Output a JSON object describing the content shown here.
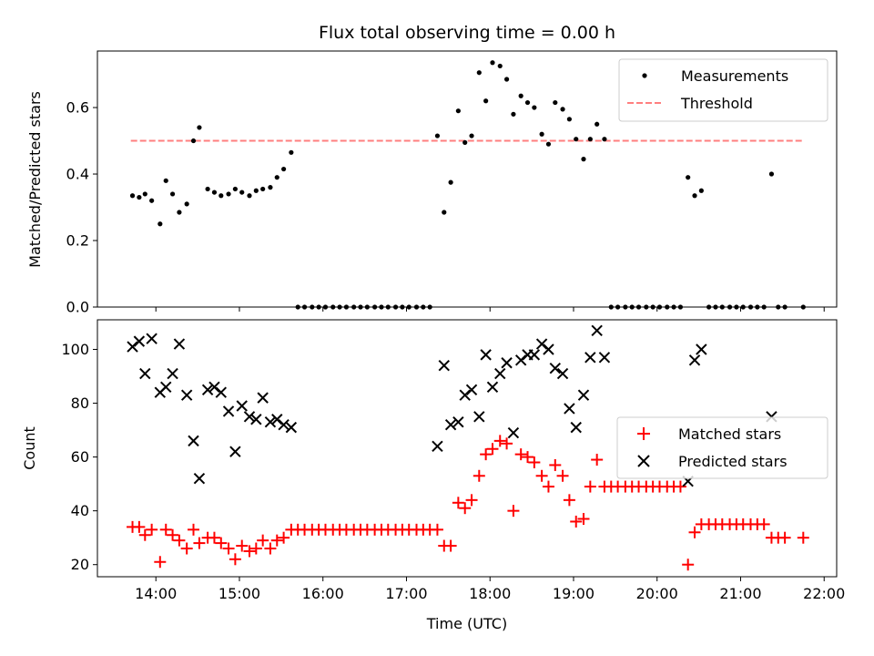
{
  "chart_data": {
    "title": "Flux total observing time = 0.00 h",
    "xlabel": "Time (UTC)",
    "xlim_hours": [
      13.3,
      22.15
    ],
    "x_ticks": [
      {
        "value": 14,
        "label": "14:00"
      },
      {
        "value": 15,
        "label": "15:00"
      },
      {
        "value": 16,
        "label": "16:00"
      },
      {
        "value": 17,
        "label": "17:00"
      },
      {
        "value": 18,
        "label": "18:00"
      },
      {
        "value": 19,
        "label": "19:00"
      },
      {
        "value": 20,
        "label": "20:00"
      },
      {
        "value": 21,
        "label": "21:00"
      },
      {
        "value": 22,
        "label": "22:00"
      }
    ],
    "top": {
      "type": "scatter",
      "ylabel": "Matched/Predicted stars",
      "ylim": [
        0,
        0.77
      ],
      "y_ticks": [
        {
          "value": 0,
          "label": "0.0"
        },
        {
          "value": 0.2,
          "label": "0.2"
        },
        {
          "value": 0.4,
          "label": "0.4"
        },
        {
          "value": 0.6,
          "label": "0.6"
        }
      ],
      "legend": {
        "placement": "top-right",
        "measurements_label": "Measurements",
        "threshold_label": "Threshold"
      },
      "threshold": {
        "value": 0.5,
        "x_range": [
          13.7,
          21.75
        ],
        "color": "#ff7f7f"
      },
      "measurements": {
        "color": "#000000",
        "x": [
          13.72,
          13.8,
          13.87,
          13.95,
          14.05,
          14.12,
          14.2,
          14.28,
          14.37,
          14.45,
          14.52,
          14.62,
          14.7,
          14.78,
          14.87,
          14.95,
          15.03,
          15.12,
          15.2,
          15.28,
          15.37,
          15.45,
          15.53,
          15.62,
          15.7,
          15.78,
          15.87,
          15.95,
          16.03,
          16.12,
          16.2,
          16.28,
          16.37,
          16.45,
          16.53,
          16.62,
          16.7,
          16.78,
          16.87,
          16.95,
          17.03,
          17.12,
          17.2,
          17.28,
          17.37,
          17.45,
          17.53,
          17.62,
          17.7,
          17.78,
          17.87,
          17.95,
          18.03,
          18.12,
          18.2,
          18.28,
          18.37,
          18.45,
          18.53,
          18.62,
          18.7,
          18.78,
          18.87,
          18.95,
          19.03,
          19.12,
          19.2,
          19.28,
          19.37,
          19.45,
          19.53,
          19.62,
          19.7,
          19.78,
          19.87,
          19.95,
          20.03,
          20.12,
          20.2,
          20.28,
          20.37,
          20.45,
          20.53,
          20.62,
          20.7,
          20.78,
          20.87,
          20.95,
          21.03,
          21.12,
          21.2,
          21.28,
          21.37,
          21.45,
          21.53,
          21.75
        ],
        "y": [
          0.335,
          0.33,
          0.34,
          0.32,
          0.25,
          0.38,
          0.34,
          0.285,
          0.31,
          0.5,
          0.54,
          0.355,
          0.345,
          0.335,
          0.34,
          0.355,
          0.345,
          0.335,
          0.35,
          0.355,
          0.36,
          0.39,
          0.415,
          0.465,
          0,
          0,
          0,
          0,
          0,
          0,
          0,
          0,
          0,
          0,
          0,
          0,
          0,
          0,
          0,
          0,
          0,
          0,
          0,
          0,
          0.515,
          0.285,
          0.375,
          0.59,
          0.495,
          0.515,
          0.705,
          0.62,
          0.735,
          0.725,
          0.685,
          0.58,
          0.635,
          0.615,
          0.6,
          0.52,
          0.49,
          0.615,
          0.595,
          0.565,
          0.505,
          0.445,
          0.505,
          0.55,
          0.505,
          0,
          0,
          0,
          0,
          0,
          0,
          0,
          0,
          0,
          0,
          0,
          0.39,
          0.335,
          0.35,
          0,
          0,
          0,
          0,
          0,
          0,
          0,
          0,
          0,
          0.4,
          0,
          0,
          0
        ]
      }
    },
    "bottom": {
      "type": "scatter",
      "ylabel": "Count",
      "ylim": [
        15.5,
        111
      ],
      "y_ticks": [
        {
          "value": 20,
          "label": "20"
        },
        {
          "value": 40,
          "label": "40"
        },
        {
          "value": 60,
          "label": "60"
        },
        {
          "value": 80,
          "label": "80"
        },
        {
          "value": 100,
          "label": "100"
        }
      ],
      "legend": {
        "placement": "center-right"
      },
      "series": [
        {
          "name": "Matched stars",
          "marker": "plus",
          "color": "#ff0000",
          "x": [
            13.72,
            13.8,
            13.87,
            13.95,
            14.05,
            14.12,
            14.2,
            14.28,
            14.37,
            14.45,
            14.52,
            14.62,
            14.7,
            14.78,
            14.87,
            14.95,
            15.03,
            15.12,
            15.2,
            15.28,
            15.37,
            15.45,
            15.53,
            15.62,
            15.7,
            15.78,
            15.87,
            15.95,
            16.03,
            16.12,
            16.2,
            16.28,
            16.37,
            16.45,
            16.53,
            16.62,
            16.7,
            16.78,
            16.87,
            16.95,
            17.03,
            17.12,
            17.2,
            17.28,
            17.37,
            17.45,
            17.53,
            17.62,
            17.7,
            17.78,
            17.87,
            17.95,
            18.03,
            18.12,
            18.2,
            18.28,
            18.37,
            18.45,
            18.53,
            18.62,
            18.7,
            18.78,
            18.87,
            18.95,
            19.03,
            19.12,
            19.2,
            19.28,
            19.37,
            19.45,
            19.53,
            19.62,
            19.7,
            19.78,
            19.87,
            19.95,
            20.03,
            20.12,
            20.2,
            20.28,
            20.37,
            20.45,
            20.53,
            20.62,
            20.7,
            20.78,
            20.87,
            20.95,
            21.03,
            21.12,
            21.2,
            21.28,
            21.37,
            21.45,
            21.53,
            21.75
          ],
          "y": [
            34,
            34,
            31,
            33,
            21,
            33,
            31,
            29,
            26,
            33,
            28,
            30,
            30,
            28,
            26,
            22,
            27,
            25,
            26,
            29,
            26,
            29,
            30,
            33,
            33,
            33,
            33,
            33,
            33,
            33,
            33,
            33,
            33,
            33,
            33,
            33,
            33,
            33,
            33,
            33,
            33,
            33,
            33,
            33,
            33,
            27,
            27,
            43,
            41,
            44,
            53,
            61,
            63,
            66,
            65,
            40,
            61,
            60,
            58,
            53,
            49,
            57,
            53,
            44,
            36,
            37,
            49,
            59,
            49,
            49,
            49,
            49,
            49,
            49,
            49,
            49,
            49,
            49,
            49,
            49,
            20,
            32,
            35,
            35,
            35,
            35,
            35,
            35,
            35,
            35,
            35,
            35,
            30,
            30,
            30,
            30
          ]
        },
        {
          "name": "Predicted stars",
          "marker": "x",
          "color": "#000000",
          "x": [
            13.72,
            13.8,
            13.87,
            13.95,
            14.05,
            14.12,
            14.2,
            14.28,
            14.37,
            14.45,
            14.52,
            14.62,
            14.7,
            14.78,
            14.87,
            14.95,
            15.03,
            15.12,
            15.2,
            15.28,
            15.37,
            15.45,
            15.53,
            15.62,
            17.37,
            17.45,
            17.53,
            17.62,
            17.7,
            17.78,
            17.87,
            17.95,
            18.03,
            18.12,
            18.2,
            18.28,
            18.37,
            18.45,
            18.53,
            18.62,
            18.7,
            18.78,
            18.87,
            18.95,
            19.03,
            19.12,
            19.2,
            19.28,
            19.37,
            20.37,
            20.45,
            20.53,
            21.37
          ],
          "y": [
            101,
            103,
            91,
            104,
            84,
            86,
            91,
            102,
            83,
            66,
            52,
            85,
            86,
            84,
            77,
            62,
            79,
            75,
            74,
            82,
            73,
            74,
            72,
            71,
            64,
            94,
            72,
            73,
            83,
            85,
            75,
            98,
            86,
            91,
            95,
            69,
            96,
            98,
            98,
            102,
            100,
            93,
            91,
            78,
            71,
            83,
            97,
            107,
            97,
            51,
            96,
            100,
            75
          ]
        }
      ]
    }
  }
}
